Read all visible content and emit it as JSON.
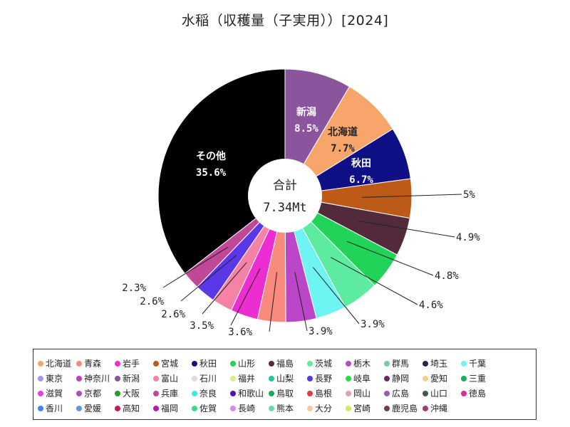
{
  "chart_data": {
    "type": "pie",
    "title": "水稲（収穫量（子実用））[2024]",
    "center_title": "合計",
    "center_value": "7.34Mt",
    "slices": [
      {
        "name": "新潟",
        "value": 8.5,
        "label": "8.5%",
        "color": "#8a559c",
        "label_pos": "inside",
        "label_color": "#ffffff"
      },
      {
        "name": "北海道",
        "value": 7.7,
        "label": "7.7%",
        "color": "#f7a56b",
        "label_pos": "inside",
        "label_color": "#222222"
      },
      {
        "name": "秋田",
        "value": 6.7,
        "label": "6.7%",
        "color": "#0f0f86",
        "label_pos": "inside",
        "label_color": "#ffffff"
      },
      {
        "name": "",
        "value": 5.0,
        "label": "5%",
        "color": "#bd5a18",
        "label_pos": "outside"
      },
      {
        "name": "",
        "value": 4.9,
        "label": "4.9%",
        "color": "#522a3b",
        "label_pos": "outside"
      },
      {
        "name": "",
        "value": 4.8,
        "label": "4.8%",
        "color": "#22d35a",
        "label_pos": "outside"
      },
      {
        "name": "",
        "value": 4.6,
        "label": "4.6%",
        "color": "#5ceba0",
        "label_pos": "outside"
      },
      {
        "name": "",
        "value": 3.9,
        "label": "3.9%",
        "color": "#6ff4f4",
        "label_pos": "outside"
      },
      {
        "name": "",
        "value": 3.9,
        "label": "3.9%",
        "color": "#bc46c8",
        "label_pos": "outside"
      },
      {
        "name": "",
        "value": 3.6,
        "label": "3.6%",
        "color": "#f98a7e",
        "label_pos": "outside"
      },
      {
        "name": "",
        "value": 3.5,
        "label": "3.5%",
        "color": "#ec2ed0",
        "label_pos": "outside"
      },
      {
        "name": "",
        "value": 2.6,
        "label": "2.6%",
        "color": "#f682a6",
        "label_pos": "outside"
      },
      {
        "name": "",
        "value": 2.6,
        "label": "2.6%",
        "color": "#5a38e6",
        "label_pos": "outside"
      },
      {
        "name": "",
        "value": 2.3,
        "label": "2.3%",
        "color": "#c04896",
        "label_pos": "outside"
      },
      {
        "name": "その他",
        "value": 35.6,
        "label": "35.6%",
        "color": "#000000",
        "label_pos": "inside",
        "label_color": "#ffffff"
      }
    ],
    "legend_position": "bottom",
    "legend": [
      {
        "name": "北海道",
        "color": "#f7a56b"
      },
      {
        "name": "青森",
        "color": "#f98a7e"
      },
      {
        "name": "岩手",
        "color": "#ec2ed0"
      },
      {
        "name": "宮城",
        "color": "#bd5a18"
      },
      {
        "name": "秋田",
        "color": "#0f0f86"
      },
      {
        "name": "山形",
        "color": "#22d35a"
      },
      {
        "name": "福島",
        "color": "#522a3b"
      },
      {
        "name": "茨城",
        "color": "#5ceba0"
      },
      {
        "name": "栃木",
        "color": "#bc46c8"
      },
      {
        "name": "群馬",
        "color": "#7ac8a8"
      },
      {
        "name": "埼玉",
        "color": "#24244c"
      },
      {
        "name": "千葉",
        "color": "#6ff4f4"
      },
      {
        "name": "東京",
        "color": "#a895e6"
      },
      {
        "name": "神奈川",
        "color": "#c040c0"
      },
      {
        "name": "新潟",
        "color": "#8a559c"
      },
      {
        "name": "富山",
        "color": "#f682a6"
      },
      {
        "name": "石川",
        "color": "#e8d4dc"
      },
      {
        "name": "福井",
        "color": "#d8ee8a"
      },
      {
        "name": "山梨",
        "color": "#1ec8a0"
      },
      {
        "name": "長野",
        "color": "#5a38e6"
      },
      {
        "name": "岐阜",
        "color": "#22dd44"
      },
      {
        "name": "静岡",
        "color": "#6a2a5a"
      },
      {
        "name": "愛知",
        "color": "#f5d08a"
      },
      {
        "name": "三重",
        "color": "#1fae5a"
      },
      {
        "name": "滋賀",
        "color": "#e040e0"
      },
      {
        "name": "京都",
        "color": "#b04ac8"
      },
      {
        "name": "大阪",
        "color": "#2a9a2a"
      },
      {
        "name": "兵庫",
        "color": "#c04896"
      },
      {
        "name": "奈良",
        "color": "#3ce8f0"
      },
      {
        "name": "和歌山",
        "color": "#5a10b0"
      },
      {
        "name": "鳥取",
        "color": "#1aa85a"
      },
      {
        "name": "島根",
        "color": "#e03a4a"
      },
      {
        "name": "岡山",
        "color": "#e2a0b0"
      },
      {
        "name": "広島",
        "color": "#9a5ab8"
      },
      {
        "name": "山口",
        "color": "#3a5a4a"
      },
      {
        "name": "徳島",
        "color": "#e02a9a"
      },
      {
        "name": "香川",
        "color": "#3a88e8"
      },
      {
        "name": "愛媛",
        "color": "#5a9ad8"
      },
      {
        "name": "高知",
        "color": "#c01a6a"
      },
      {
        "name": "福岡",
        "color": "#b01ab8"
      },
      {
        "name": "佐賀",
        "color": "#3adc8a"
      },
      {
        "name": "長崎",
        "color": "#d888e8"
      },
      {
        "name": "熊本",
        "color": "#6ad8b0"
      },
      {
        "name": "大分",
        "color": "#f4c8a0"
      },
      {
        "name": "宮崎",
        "color": "#d4e85a"
      },
      {
        "name": "鹿児島",
        "color": "#7a3a4a"
      },
      {
        "name": "沖縄",
        "color": "#a03a7a"
      }
    ]
  }
}
